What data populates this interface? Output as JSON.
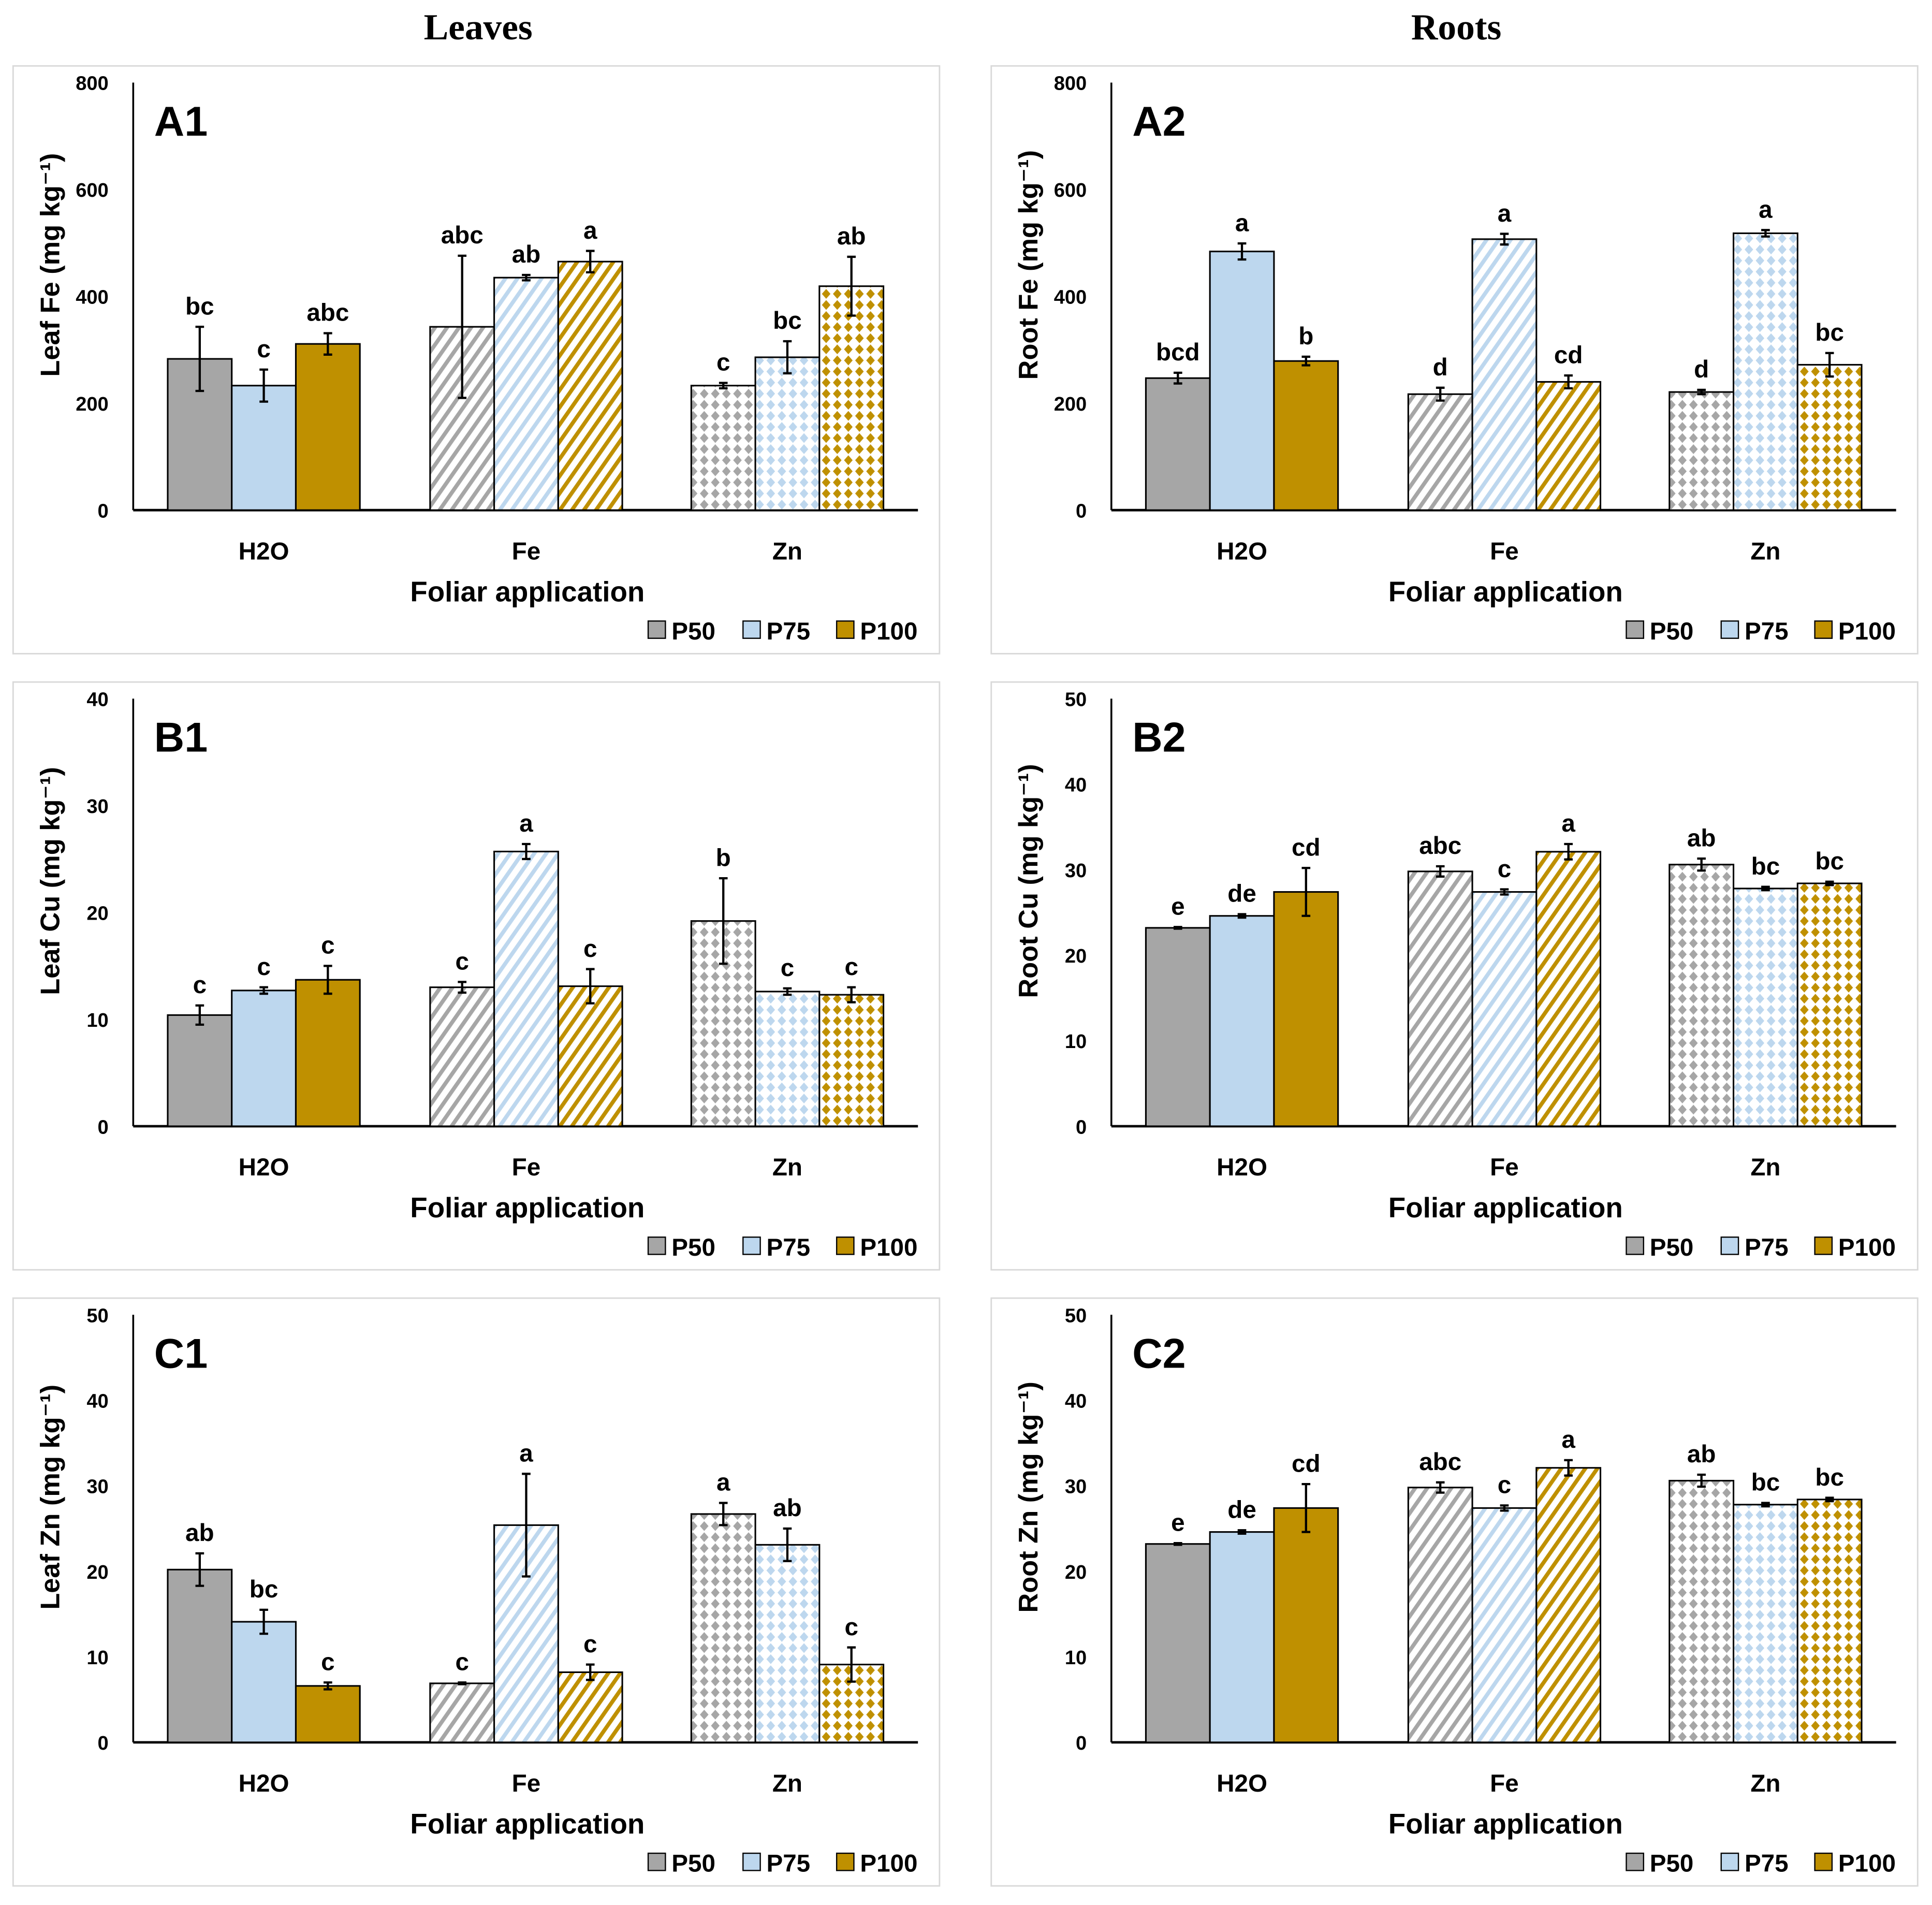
{
  "column_titles": [
    "Leaves",
    "Roots"
  ],
  "colors": {
    "P50": "#a6a6a6",
    "P75": "#bdd7ee",
    "P100": "#bf9000"
  },
  "chart_data": [
    {
      "id": "A1",
      "type": "bar",
      "panel_label": "A1",
      "xlabel": "Foliar application",
      "ylabel": "Leaf Fe (mg kg⁻¹)",
      "ylim": [
        0,
        800
      ],
      "yticks": [
        "0",
        "200",
        "400",
        "600",
        "800"
      ],
      "categories": [
        "H2O",
        "Fe",
        "Zn"
      ],
      "legend": [
        "P50",
        "P75",
        "P100"
      ],
      "legend_position": "bottom-right",
      "series": [
        {
          "name": "P50",
          "values": [
            283,
            343,
            233
          ],
          "errors": [
            60,
            133,
            5
          ],
          "letters": [
            "bc",
            "abc",
            "c"
          ]
        },
        {
          "name": "P75",
          "values": [
            233,
            435,
            286
          ],
          "errors": [
            30,
            5,
            30
          ],
          "letters": [
            "c",
            "ab",
            "bc"
          ]
        },
        {
          "name": "P100",
          "values": [
            311,
            465,
            419
          ],
          "errors": [
            20,
            20,
            55
          ],
          "letters": [
            "abc",
            "a",
            "ab"
          ]
        }
      ]
    },
    {
      "id": "A2",
      "type": "bar",
      "panel_label": "A2",
      "xlabel": "Foliar application",
      "ylabel": "Root Fe (mg kg⁻¹)",
      "ylim": [
        0,
        800
      ],
      "yticks": [
        "0",
        "200",
        "400",
        "600",
        "800"
      ],
      "categories": [
        "H2O",
        "Fe",
        "Zn"
      ],
      "legend": [
        "P50",
        "P75",
        "P100"
      ],
      "legend_position": "bottom-right",
      "series": [
        {
          "name": "P50",
          "values": [
            247,
            217,
            221
          ],
          "errors": [
            10,
            12,
            4
          ],
          "letters": [
            "bcd",
            "d",
            "d"
          ]
        },
        {
          "name": "P75",
          "values": [
            484,
            507,
            518
          ],
          "errors": [
            15,
            10,
            6
          ],
          "letters": [
            "a",
            "a",
            "a"
          ]
        },
        {
          "name": "P100",
          "values": [
            279,
            240,
            272
          ],
          "errors": [
            8,
            12,
            22
          ],
          "letters": [
            "b",
            "cd",
            "bc"
          ]
        }
      ]
    },
    {
      "id": "B1",
      "type": "bar",
      "panel_label": "B1",
      "xlabel": "Foliar application",
      "ylabel": "Leaf Cu (mg kg⁻¹)",
      "ylim": [
        0,
        40
      ],
      "yticks": [
        "0",
        "10",
        "20",
        "30",
        "40"
      ],
      "categories": [
        "H2O",
        "Fe",
        "Zn"
      ],
      "legend": [
        "P50",
        "P75",
        "P100"
      ],
      "legend_position": "bottom-right",
      "series": [
        {
          "name": "P50",
          "values": [
            10.4,
            13.0,
            19.2
          ],
          "errors": [
            0.9,
            0.5,
            4.0
          ],
          "letters": [
            "c",
            "c",
            "b"
          ]
        },
        {
          "name": "P75",
          "values": [
            12.7,
            25.7,
            12.6
          ],
          "errors": [
            0.3,
            0.7,
            0.3
          ],
          "letters": [
            "c",
            "a",
            "c"
          ]
        },
        {
          "name": "P100",
          "values": [
            13.7,
            13.1,
            12.3
          ],
          "errors": [
            1.3,
            1.6,
            0.7
          ],
          "letters": [
            "c",
            "c",
            "c"
          ]
        }
      ]
    },
    {
      "id": "B2",
      "type": "bar",
      "panel_label": "B2",
      "xlabel": "Foliar application",
      "ylabel": "Root Cu (mg kg⁻¹)",
      "ylim": [
        0,
        50
      ],
      "yticks": [
        "0",
        "10",
        "20",
        "30",
        "40",
        "50"
      ],
      "categories": [
        "H2O",
        "Fe",
        "Zn"
      ],
      "legend": [
        "P50",
        "P75",
        "P100"
      ],
      "legend_position": "bottom-right",
      "series": [
        {
          "name": "P50",
          "values": [
            23.2,
            29.8,
            30.6
          ],
          "errors": [
            0.1,
            0.6,
            0.7
          ],
          "letters": [
            "e",
            "abc",
            "ab"
          ]
        },
        {
          "name": "P75",
          "values": [
            24.6,
            27.4,
            27.8
          ],
          "errors": [
            0.2,
            0.3,
            0.2
          ],
          "letters": [
            "de",
            "c",
            "bc"
          ]
        },
        {
          "name": "P100",
          "values": [
            27.4,
            32.1,
            28.4
          ],
          "errors": [
            2.8,
            0.9,
            0.2
          ],
          "letters": [
            "cd",
            "a",
            "bc"
          ]
        }
      ]
    },
    {
      "id": "C1",
      "type": "bar",
      "panel_label": "C1",
      "xlabel": "Foliar application",
      "ylabel": "Leaf Zn (mg kg⁻¹)",
      "ylim": [
        0,
        50
      ],
      "yticks": [
        "0",
        "10",
        "20",
        "30",
        "40",
        "50"
      ],
      "categories": [
        "H2O",
        "Fe",
        "Zn"
      ],
      "legend": [
        "P50",
        "P75",
        "P100"
      ],
      "legend_position": "bottom-right",
      "series": [
        {
          "name": "P50",
          "values": [
            20.2,
            6.9,
            26.7
          ],
          "errors": [
            1.9,
            0.1,
            1.3
          ],
          "letters": [
            "ab",
            "c",
            "a"
          ]
        },
        {
          "name": "P75",
          "values": [
            14.1,
            25.4,
            23.1
          ],
          "errors": [
            1.4,
            6.0,
            1.9
          ],
          "letters": [
            "bc",
            "a",
            "ab"
          ]
        },
        {
          "name": "P100",
          "values": [
            6.6,
            8.2,
            9.1
          ],
          "errors": [
            0.4,
            0.9,
            2.0
          ],
          "letters": [
            "c",
            "c",
            "c"
          ]
        }
      ]
    },
    {
      "id": "C2",
      "type": "bar",
      "panel_label": "C2",
      "xlabel": "Foliar application",
      "ylabel": "Root Zn (mg kg⁻¹)",
      "ylim": [
        0,
        50
      ],
      "yticks": [
        "0",
        "10",
        "20",
        "30",
        "40",
        "50"
      ],
      "categories": [
        "H2O",
        "Fe",
        "Zn"
      ],
      "legend": [
        "P50",
        "P75",
        "P100"
      ],
      "legend_position": "bottom-right",
      "series": [
        {
          "name": "P50",
          "values": [
            23.2,
            29.8,
            30.6
          ],
          "errors": [
            0.1,
            0.6,
            0.7
          ],
          "letters": [
            "e",
            "abc",
            "ab"
          ]
        },
        {
          "name": "P75",
          "values": [
            24.6,
            27.4,
            27.8
          ],
          "errors": [
            0.2,
            0.3,
            0.2
          ],
          "letters": [
            "de",
            "c",
            "bc"
          ]
        },
        {
          "name": "P100",
          "values": [
            27.4,
            32.1,
            28.4
          ],
          "errors": [
            2.8,
            0.9,
            0.2
          ],
          "letters": [
            "cd",
            "a",
            "bc"
          ]
        }
      ]
    }
  ]
}
